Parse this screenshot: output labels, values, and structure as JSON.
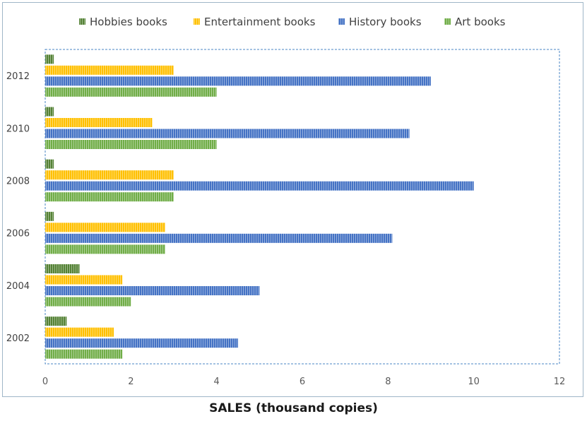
{
  "chart_data": {
    "type": "bar",
    "orientation": "horizontal",
    "title": "",
    "xlabel": "SALES (thousand copies)",
    "ylabel": "",
    "xlim": [
      0,
      12
    ],
    "xticks": [
      0,
      2,
      4,
      6,
      8,
      10,
      12
    ],
    "grid": false,
    "legend_position": "top",
    "categories": [
      "2012",
      "2010",
      "2008",
      "2006",
      "2004",
      "2002"
    ],
    "series": [
      {
        "name": "Hobbies books",
        "color": "#548235",
        "values": [
          0.2,
          0.2,
          0.2,
          0.2,
          0.8,
          0.5
        ]
      },
      {
        "name": "Entertainment books",
        "color": "#ffc000",
        "values": [
          3.0,
          2.5,
          3.0,
          2.8,
          1.8,
          1.6
        ]
      },
      {
        "name": "History books",
        "color": "#4472c4",
        "values": [
          9.0,
          8.5,
          10.0,
          8.1,
          5.0,
          4.5
        ]
      },
      {
        "name": "Art books",
        "color": "#70ad47",
        "values": [
          4.0,
          4.0,
          3.0,
          2.8,
          2.0,
          1.8
        ]
      }
    ]
  }
}
